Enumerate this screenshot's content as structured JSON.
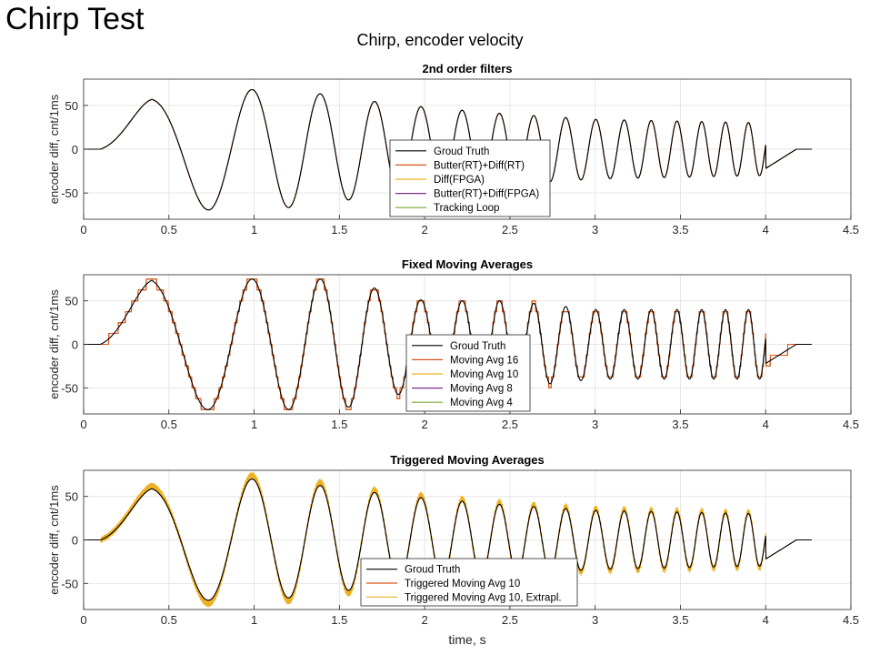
{
  "slide_title": "Chirp Test",
  "figure_title": "Chirp, encoder velocity",
  "xlabel": "time, s",
  "chart_data": [
    {
      "type": "line",
      "title": "2nd order filters",
      "ylabel": "encoder diff, cnt/1ms",
      "xlim": [
        0,
        4.5
      ],
      "ylim": [
        -80,
        80
      ],
      "xticks": [
        "0",
        "0.5",
        "1",
        "1.5",
        "2",
        "2.5",
        "3",
        "3.5",
        "4",
        "4.5"
      ],
      "yticks": [
        "-50",
        "0",
        "50"
      ],
      "grid": true,
      "legend_position": "bottom-center",
      "peak_envelope": [
        [
          0,
          0
        ],
        [
          0.4,
          58
        ],
        [
          0.75,
          70
        ],
        [
          1.0,
          68
        ],
        [
          1.3,
          66
        ],
        [
          1.55,
          58
        ],
        [
          2.0,
          48
        ],
        [
          2.5,
          40
        ],
        [
          3.0,
          34
        ],
        [
          4.0,
          30
        ]
      ],
      "series": [
        {
          "name": "Groud Truth",
          "color": "#000000"
        },
        {
          "name": "Butter(RT)+Diff(RT)",
          "color": "#d95319"
        },
        {
          "name": "Diff(FPGA)",
          "color": "#edb120"
        },
        {
          "name": "Butter(RT)+Diff(FPGA)",
          "color": "#7e2f8e"
        },
        {
          "name": "Tracking Loop",
          "color": "#77ac30"
        }
      ]
    },
    {
      "type": "line",
      "title": "Fixed Moving Averages",
      "ylabel": "encoder diff, cnt/1ms",
      "xlim": [
        0,
        4.5
      ],
      "ylim": [
        -80,
        80
      ],
      "xticks": [
        "0",
        "0.5",
        "1",
        "1.5",
        "2",
        "2.5",
        "3",
        "3.5",
        "4",
        "4.5"
      ],
      "yticks": [
        "-50",
        "0",
        "50"
      ],
      "grid": true,
      "legend_position": "bottom-center",
      "peak_envelope": [
        [
          0,
          0
        ],
        [
          0.4,
          75
        ],
        [
          0.75,
          75
        ],
        [
          1.0,
          75
        ],
        [
          1.5,
          75
        ],
        [
          2.0,
          50
        ],
        [
          2.5,
          50
        ],
        [
          3.0,
          40
        ],
        [
          4.0,
          40
        ]
      ],
      "series": [
        {
          "name": "Groud Truth",
          "color": "#000000"
        },
        {
          "name": "Moving Avg 16",
          "color": "#d95319"
        },
        {
          "name": "Moving Avg 10",
          "color": "#edb120"
        },
        {
          "name": "Moving Avg 8",
          "color": "#7e2f8e"
        },
        {
          "name": "Moving Avg 4",
          "color": "#77ac30"
        }
      ]
    },
    {
      "type": "line",
      "title": "Triggered Moving Averages",
      "ylabel": "encoder diff, cnt/1ms",
      "xlim": [
        0,
        4.5
      ],
      "ylim": [
        -80,
        80
      ],
      "xticks": [
        "0",
        "0.5",
        "1",
        "1.5",
        "2",
        "2.5",
        "3",
        "3.5",
        "4",
        "4.5"
      ],
      "yticks": [
        "-50",
        "0",
        "50"
      ],
      "grid": true,
      "legend_position": "bottom-center",
      "peak_envelope": [
        [
          0,
          0
        ],
        [
          0.4,
          60
        ],
        [
          0.75,
          70
        ],
        [
          1.0,
          70
        ],
        [
          1.3,
          65
        ],
        [
          1.55,
          58
        ],
        [
          2.0,
          48
        ],
        [
          2.5,
          40
        ],
        [
          3.0,
          34
        ],
        [
          4.0,
          30
        ]
      ],
      "series": [
        {
          "name": "Groud Truth",
          "color": "#000000"
        },
        {
          "name": "Triggered Moving Avg 10",
          "color": "#d95319"
        },
        {
          "name": "Triggered Moving Avg 10, Extrapl.",
          "color": "#edb120"
        }
      ]
    }
  ]
}
